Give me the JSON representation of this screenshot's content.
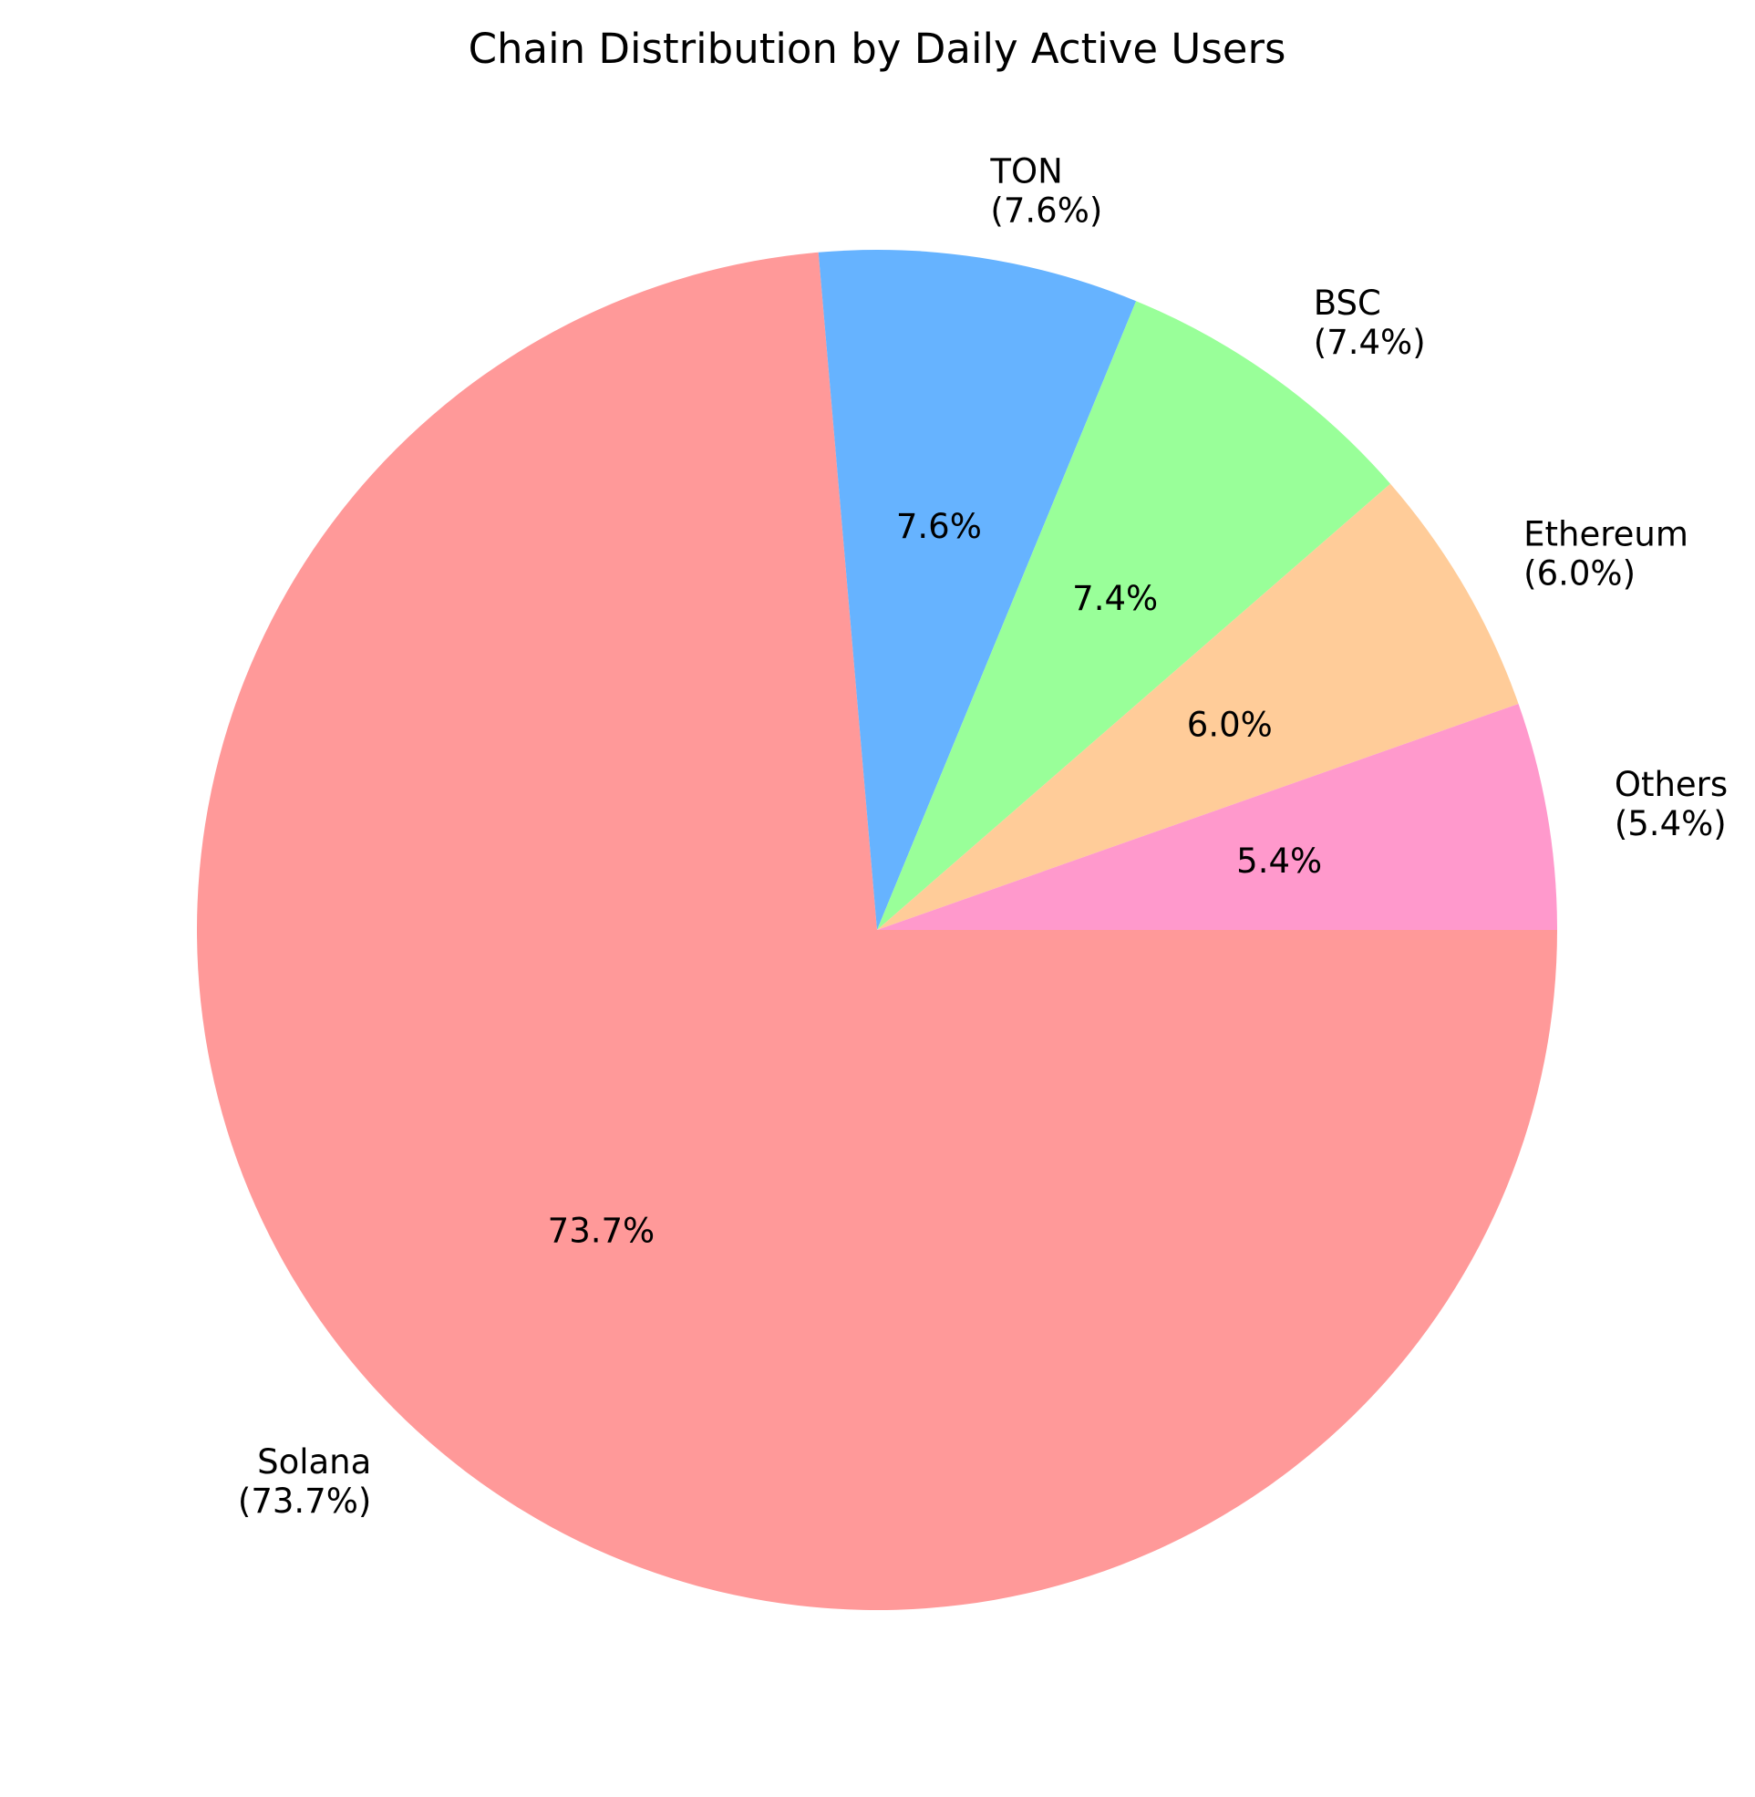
{
  "chart_data": {
    "type": "pie",
    "title": "Chain Distribution by Daily Active Users",
    "slices": [
      {
        "name": "Solana",
        "value": 73.7,
        "label_pct": "(73.7%)",
        "pct": "73.7%",
        "color": "#ff9999"
      },
      {
        "name": "TON",
        "value": 7.6,
        "label_pct": "(7.6%)",
        "pct": "7.6%",
        "color": "#66b3ff"
      },
      {
        "name": "BSC",
        "value": 7.4,
        "label_pct": "(7.4%)",
        "pct": "7.4%",
        "color": "#99ff99"
      },
      {
        "name": "Ethereum",
        "value": 6.0,
        "label_pct": "(6.0%)",
        "pct": "6.0%",
        "color": "#ffcc99"
      },
      {
        "name": "Others",
        "value": 5.4,
        "label_pct": "(5.4%)",
        "pct": "5.4%",
        "color": "#ff99cc"
      }
    ],
    "start_angle_deg": 0,
    "direction": "clockwise",
    "legend": "none"
  }
}
